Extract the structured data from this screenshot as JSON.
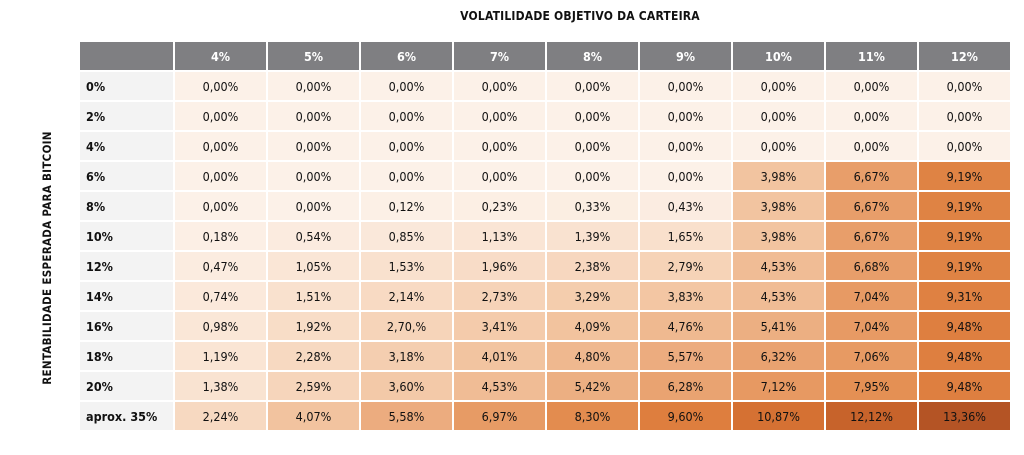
{
  "chart_data": {
    "type": "heatmap",
    "title": "VOLATILIDADE OBJETIVO DA CARTEIRA",
    "ylabel": "RENTABILIDADE ESPERADA PARA BITCOIN",
    "columns": [
      "4%",
      "5%",
      "6%",
      "7%",
      "8%",
      "9%",
      "10%",
      "11%",
      "12%"
    ],
    "rows": [
      "0%",
      "2%",
      "4%",
      "6%",
      "8%",
      "10%",
      "12%",
      "14%",
      "16%",
      "18%",
      "20%",
      "aprox. 35%"
    ],
    "values": [
      [
        "0,00%",
        "0,00%",
        "0,00%",
        "0,00%",
        "0,00%",
        "0,00%",
        "0,00%",
        "0,00%",
        "0,00%"
      ],
      [
        "0,00%",
        "0,00%",
        "0,00%",
        "0,00%",
        "0,00%",
        "0,00%",
        "0,00%",
        "0,00%",
        "0,00%"
      ],
      [
        "0,00%",
        "0,00%",
        "0,00%",
        "0,00%",
        "0,00%",
        "0,00%",
        "0,00%",
        "0,00%",
        "0,00%"
      ],
      [
        "0,00%",
        "0,00%",
        "0,00%",
        "0,00%",
        "0,00%",
        "0,00%",
        "3,98%",
        "6,67%",
        "9,19%"
      ],
      [
        "0,00%",
        "0,00%",
        "0,12%",
        "0,23%",
        "0,33%",
        "0,43%",
        "3,98%",
        "6,67%",
        "9,19%"
      ],
      [
        "0,18%",
        "0,54%",
        "0,85%",
        "1,13%",
        "1,39%",
        "1,65%",
        "3,98%",
        "6,67%",
        "9,19%"
      ],
      [
        "0,47%",
        "1,05%",
        "1,53%",
        "1,96%",
        "2,38%",
        "2,79%",
        "4,53%",
        "6,68%",
        "9,19%"
      ],
      [
        "0,74%",
        "1,51%",
        "2,14%",
        "2,73%",
        "3,29%",
        "3,83%",
        "4,53%",
        "7,04%",
        "9,31%"
      ],
      [
        "0,98%",
        "1,92%",
        "2,70,%",
        "3,41%",
        "4,09%",
        "4,76%",
        "5,41%",
        "7,04%",
        "9,48%"
      ],
      [
        "1,19%",
        "2,28%",
        "3,18%",
        "4,01%",
        "4,80%",
        "5,57%",
        "6,32%",
        "7,06%",
        "9,48%"
      ],
      [
        "1,38%",
        "2,59%",
        "3,60%",
        "4,53%",
        "5,42%",
        "6,28%",
        "7,12%",
        "7,95%",
        "9,48%"
      ],
      [
        "2,24%",
        "4,07%",
        "5,58%",
        "6,97%",
        "8,30%",
        "9,60%",
        "10,87%",
        "12,12%",
        "13,36%"
      ]
    ],
    "color_scale": {
      "low": "#fcf1e8",
      "high": "#c05f28",
      "max_value": 13.36,
      "max_color": "#b45425"
    }
  }
}
